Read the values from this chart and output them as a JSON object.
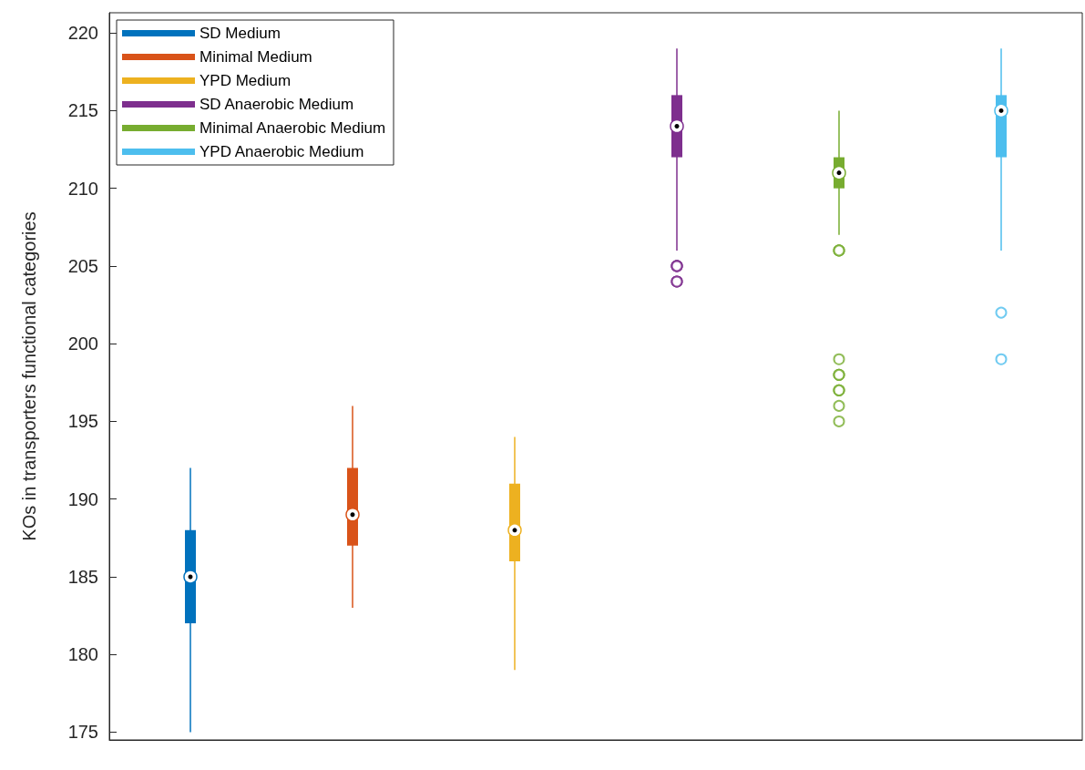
{
  "chart_data": {
    "type": "box",
    "ylabel": "KOs in transporters functional categories",
    "categories": [
      null,
      null,
      null,
      null,
      null,
      null
    ],
    "ylim": [
      174.5,
      221.3
    ],
    "yticks": [
      175,
      180,
      185,
      190,
      195,
      200,
      205,
      210,
      215,
      220
    ],
    "grid": false,
    "legend": "top left",
    "series": [
      {
        "name": "SD Medium",
        "color": "#0072bd",
        "boxes": [
          {
            "low": 175,
            "q1": 182,
            "median": 185,
            "q3": 188,
            "high": 192
          },
          null,
          null,
          null,
          null,
          null
        ]
      },
      {
        "name": "Minimal Medium",
        "color": "#d95319",
        "boxes": [
          null,
          {
            "low": 183,
            "q1": 187,
            "median": 189,
            "q3": 192,
            "high": 196
          },
          null,
          null,
          null,
          null
        ]
      },
      {
        "name": "YPD Medium",
        "color": "#edb120",
        "boxes": [
          null,
          null,
          {
            "low": 179,
            "q1": 186,
            "median": 188,
            "q3": 191,
            "high": 194
          },
          null,
          null,
          null
        ]
      },
      {
        "name": "SD Anaerobic Medium",
        "color": "#7e2f8e",
        "boxes": [
          null,
          null,
          null,
          {
            "low": 206,
            "q1": 212,
            "median": 214,
            "q3": 216,
            "high": 219,
            "outliers": [
              204,
              204,
              204,
              205,
              205,
              205,
              205
            ]
          },
          null,
          null
        ]
      },
      {
        "name": "Minimal Anaerobic Medium",
        "color": "#77ac30",
        "boxes": [
          null,
          null,
          null,
          null,
          {
            "low": 207,
            "q1": 210,
            "median": 211,
            "q3": 212,
            "high": 215,
            "outliers": [
              206,
              206,
              206,
              199,
              198,
              198,
              198,
              197,
              197,
              197,
              196,
              195
            ]
          },
          null
        ]
      },
      {
        "name": "YPD Anaerobic Medium",
        "color": "#4dbeee",
        "boxes": [
          null,
          null,
          null,
          null,
          null,
          {
            "low": 206,
            "q1": 212,
            "median": 215,
            "q3": 216,
            "high": 219,
            "outliers": [
              202,
              199
            ]
          }
        ]
      }
    ]
  }
}
